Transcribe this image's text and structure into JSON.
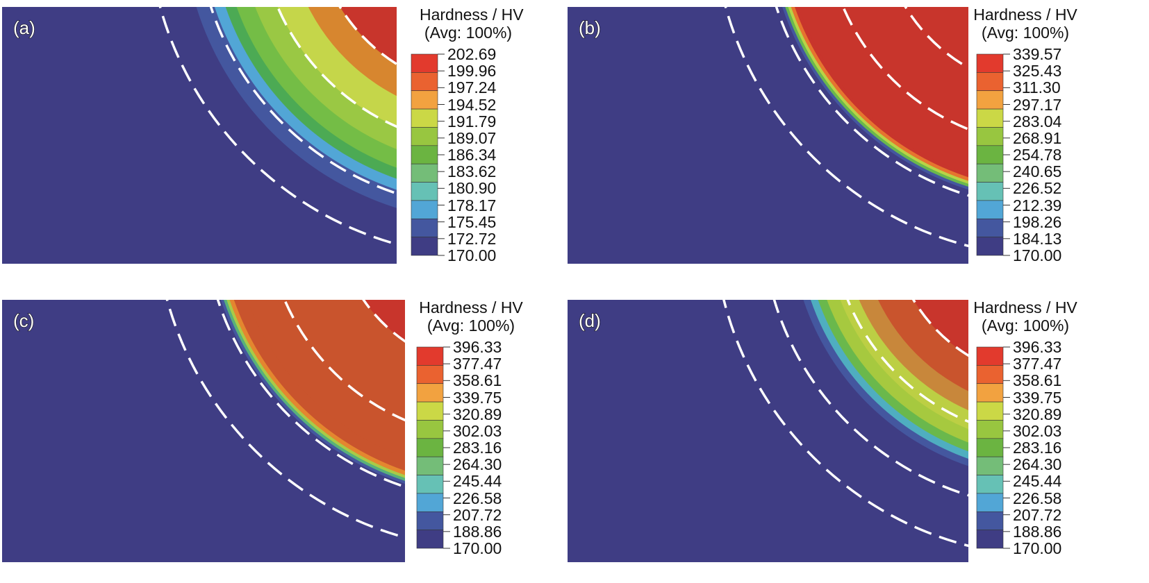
{
  "legend": {
    "title_line1": "Hardness / HV",
    "title_line2": "(Avg: 100%)"
  },
  "colors": [
    "#3f3d84",
    "#44579f",
    "#52a6d6",
    "#66c1b5",
    "#74bd78",
    "#6bb441",
    "#98c640",
    "#cbd846",
    "#f2a240",
    "#ea6230",
    "#e23a2d"
  ],
  "panels": [
    {
      "id": "a",
      "label": "(a)",
      "ticks": [
        "202.69",
        "199.96",
        "197.24",
        "194.52",
        "191.79",
        "189.07",
        "186.34",
        "183.62",
        "180.90",
        "178.17",
        "175.45",
        "172.72",
        "170.00"
      ],
      "zone_colors": [
        "#c8352c",
        "#d7862f",
        "#c5d64a",
        "#9ac844",
        "#74bd46",
        "#4caa54",
        "#52a6d6",
        "#44579f"
      ]
    },
    {
      "id": "b",
      "label": "(b)",
      "ticks": [
        "339.57",
        "325.43",
        "311.30",
        "297.17",
        "283.04",
        "268.91",
        "254.78",
        "240.65",
        "226.52",
        "212.39",
        "198.26",
        "184.13",
        "170.00"
      ],
      "zone_colors": [
        "#c8352c",
        "#c8352c",
        "#c8352c",
        "#c8352c",
        "#e6742f",
        "#b9d346",
        "#6ab84c",
        "#44579f"
      ]
    },
    {
      "id": "c",
      "label": "(c)",
      "ticks": [
        "396.33",
        "377.47",
        "358.61",
        "339.75",
        "320.89",
        "302.03",
        "283.16",
        "264.30",
        "245.44",
        "226.58",
        "207.72",
        "188.86",
        "170.00"
      ],
      "zone_colors": [
        "#c8352c",
        "#c9542d",
        "#c9542d",
        "#c9542d",
        "#e4862f",
        "#a9cb47",
        "#58b17a",
        "#44579f"
      ]
    },
    {
      "id": "d",
      "label": "(d)",
      "ticks": [
        "396.33",
        "377.47",
        "358.61",
        "339.75",
        "320.89",
        "302.03",
        "283.16",
        "264.30",
        "245.44",
        "226.58",
        "207.72",
        "188.86",
        "170.00"
      ],
      "zone_colors": [
        "#c8352c",
        "#c9542d",
        "#c8873b",
        "#bccf44",
        "#a6c93f",
        "#6ab84c",
        "#4faec0",
        "#44579f"
      ]
    }
  ]
}
